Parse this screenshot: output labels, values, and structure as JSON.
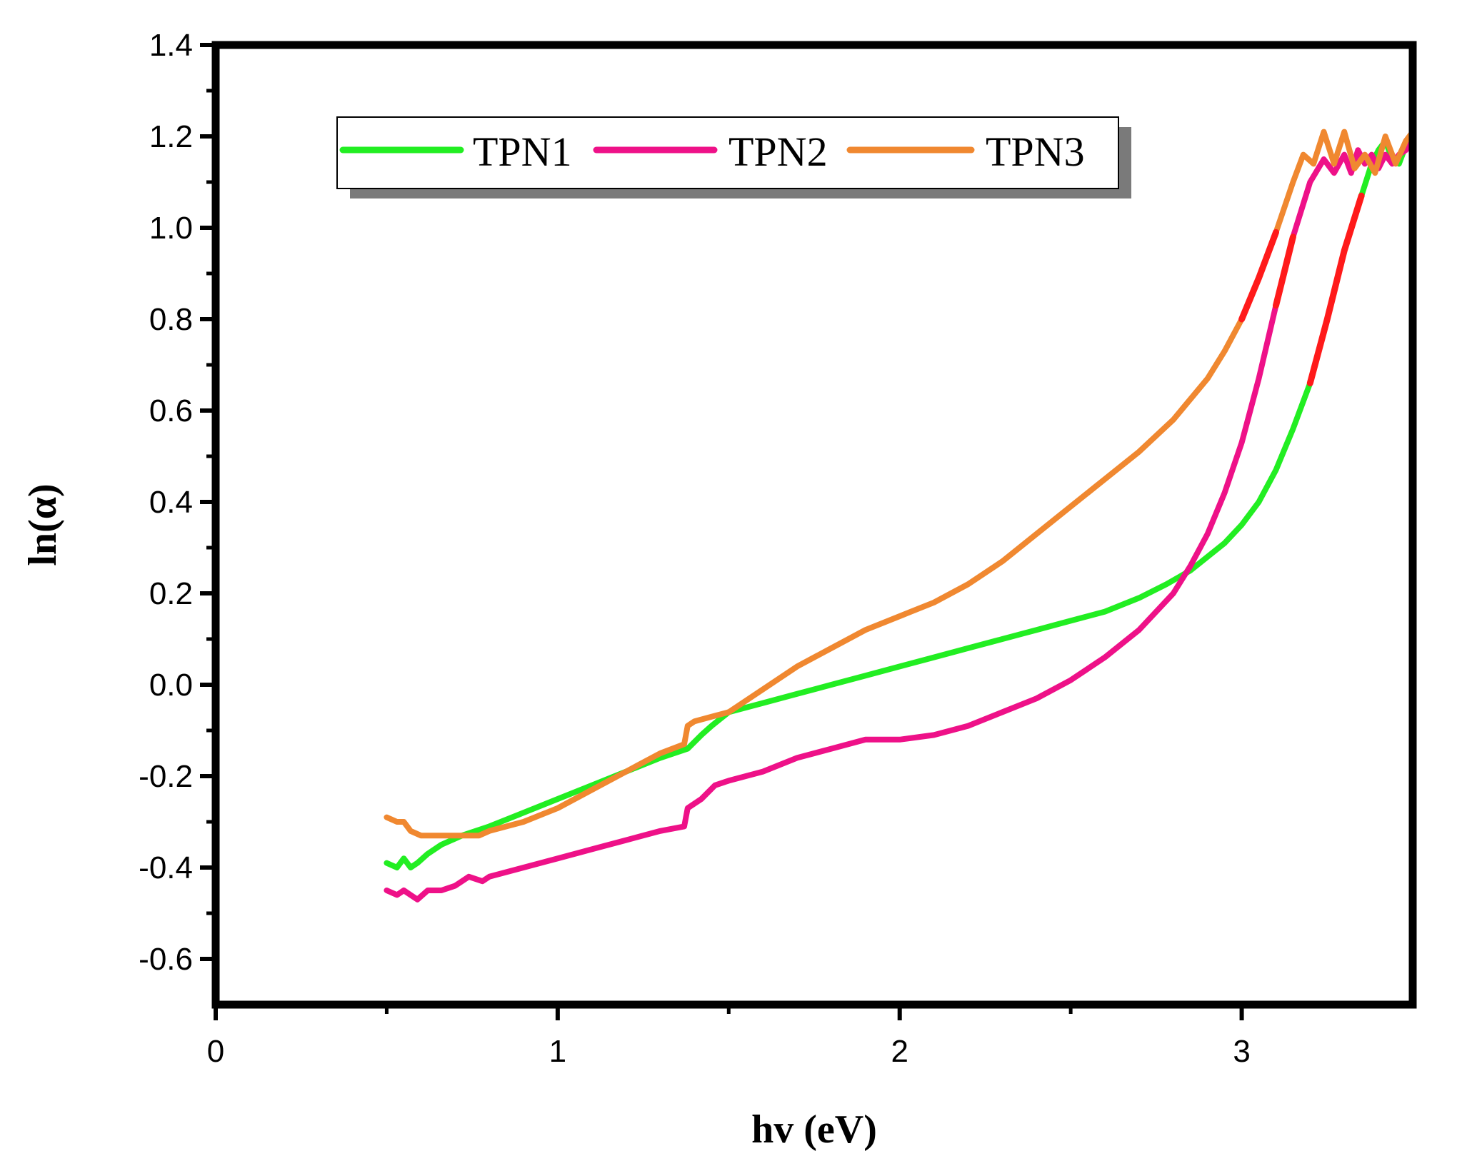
{
  "chart_data": {
    "type": "line",
    "title": "",
    "xlabel": "hv (eV)",
    "ylabel": "ln(α)",
    "xlim": [
      0,
      3.5
    ],
    "ylim": [
      -0.7,
      1.4
    ],
    "xticks": [
      0,
      1,
      2,
      3
    ],
    "xtick_labels": [
      "0",
      "1",
      "2",
      "3"
    ],
    "yticks": [
      -0.6,
      -0.4,
      -0.2,
      0.0,
      0.2,
      0.4,
      0.6,
      0.8,
      1.0,
      1.2,
      1.4
    ],
    "ytick_labels": [
      "-0.6",
      "-0.4",
      "-0.2",
      "0.0",
      "0.2",
      "0.4",
      "0.6",
      "0.8",
      "1.0",
      "1.2",
      "1.4"
    ],
    "legend_position": "top-left",
    "fit_color": "#ff1a1a",
    "series": [
      {
        "name": "TPN1",
        "color": "#22ee22",
        "fit_range": [
          3.2,
          3.35
        ],
        "x": [
          0.5,
          0.53,
          0.55,
          0.57,
          0.59,
          0.62,
          0.66,
          0.72,
          0.8,
          0.9,
          1.0,
          1.1,
          1.2,
          1.3,
          1.38,
          1.42,
          1.45,
          1.5,
          1.6,
          1.7,
          1.8,
          1.9,
          2.0,
          2.1,
          2.2,
          2.3,
          2.4,
          2.5,
          2.6,
          2.7,
          2.78,
          2.85,
          2.9,
          2.95,
          3.0,
          3.05,
          3.1,
          3.15,
          3.2,
          3.25,
          3.3,
          3.35,
          3.38,
          3.4,
          3.42,
          3.44,
          3.46,
          3.48,
          3.5
        ],
        "y": [
          -0.39,
          -0.4,
          -0.38,
          -0.4,
          -0.39,
          -0.37,
          -0.35,
          -0.33,
          -0.31,
          -0.28,
          -0.25,
          -0.22,
          -0.19,
          -0.16,
          -0.14,
          -0.11,
          -0.09,
          -0.06,
          -0.04,
          -0.02,
          0.0,
          0.02,
          0.04,
          0.06,
          0.08,
          0.1,
          0.12,
          0.14,
          0.16,
          0.19,
          0.22,
          0.25,
          0.28,
          0.31,
          0.35,
          0.4,
          0.47,
          0.56,
          0.66,
          0.8,
          0.95,
          1.07,
          1.14,
          1.17,
          1.19,
          1.15,
          1.14,
          1.18,
          1.2
        ]
      },
      {
        "name": "TPN2",
        "color": "#ee1188",
        "fit_range": [
          3.07,
          3.17
        ],
        "x": [
          0.5,
          0.53,
          0.55,
          0.57,
          0.59,
          0.62,
          0.66,
          0.7,
          0.74,
          0.78,
          0.8,
          0.9,
          1.0,
          1.1,
          1.2,
          1.3,
          1.37,
          1.38,
          1.42,
          1.46,
          1.5,
          1.6,
          1.7,
          1.8,
          1.9,
          1.95,
          2.0,
          2.1,
          2.2,
          2.3,
          2.4,
          2.5,
          2.6,
          2.7,
          2.8,
          2.85,
          2.9,
          2.95,
          3.0,
          3.05,
          3.1,
          3.15,
          3.2,
          3.24,
          3.27,
          3.3,
          3.32,
          3.34,
          3.36,
          3.38,
          3.4,
          3.42,
          3.44,
          3.46,
          3.48,
          3.5
        ],
        "y": [
          -0.45,
          -0.46,
          -0.45,
          -0.46,
          -0.47,
          -0.45,
          -0.45,
          -0.44,
          -0.42,
          -0.43,
          -0.42,
          -0.4,
          -0.38,
          -0.36,
          -0.34,
          -0.32,
          -0.31,
          -0.27,
          -0.25,
          -0.22,
          -0.21,
          -0.19,
          -0.16,
          -0.14,
          -0.12,
          -0.12,
          -0.12,
          -0.11,
          -0.09,
          -0.06,
          -0.03,
          0.01,
          0.06,
          0.12,
          0.2,
          0.26,
          0.33,
          0.42,
          0.53,
          0.67,
          0.83,
          0.98,
          1.1,
          1.15,
          1.12,
          1.16,
          1.12,
          1.17,
          1.14,
          1.16,
          1.13,
          1.16,
          1.14,
          1.16,
          1.17,
          1.19
        ]
      },
      {
        "name": "TPN3",
        "color": "#f08830",
        "fit_range": [
          3.0,
          3.12
        ],
        "x": [
          0.5,
          0.53,
          0.55,
          0.57,
          0.6,
          0.63,
          0.66,
          0.7,
          0.74,
          0.77,
          0.8,
          0.9,
          1.0,
          1.1,
          1.2,
          1.3,
          1.37,
          1.38,
          1.4,
          1.45,
          1.5,
          1.6,
          1.7,
          1.8,
          1.9,
          2.0,
          2.1,
          2.2,
          2.3,
          2.4,
          2.5,
          2.6,
          2.7,
          2.8,
          2.9,
          2.95,
          3.0,
          3.05,
          3.1,
          3.15,
          3.18,
          3.21,
          3.24,
          3.27,
          3.3,
          3.33,
          3.36,
          3.39,
          3.42,
          3.45,
          3.48,
          3.5
        ],
        "y": [
          -0.29,
          -0.3,
          -0.3,
          -0.32,
          -0.33,
          -0.33,
          -0.33,
          -0.33,
          -0.33,
          -0.33,
          -0.32,
          -0.3,
          -0.27,
          -0.23,
          -0.19,
          -0.15,
          -0.13,
          -0.09,
          -0.08,
          -0.07,
          -0.06,
          -0.01,
          0.04,
          0.08,
          0.12,
          0.15,
          0.18,
          0.22,
          0.27,
          0.33,
          0.39,
          0.45,
          0.51,
          0.58,
          0.67,
          0.73,
          0.8,
          0.89,
          0.99,
          1.1,
          1.16,
          1.14,
          1.21,
          1.14,
          1.21,
          1.13,
          1.16,
          1.12,
          1.2,
          1.14,
          1.19,
          1.21
        ]
      }
    ]
  }
}
